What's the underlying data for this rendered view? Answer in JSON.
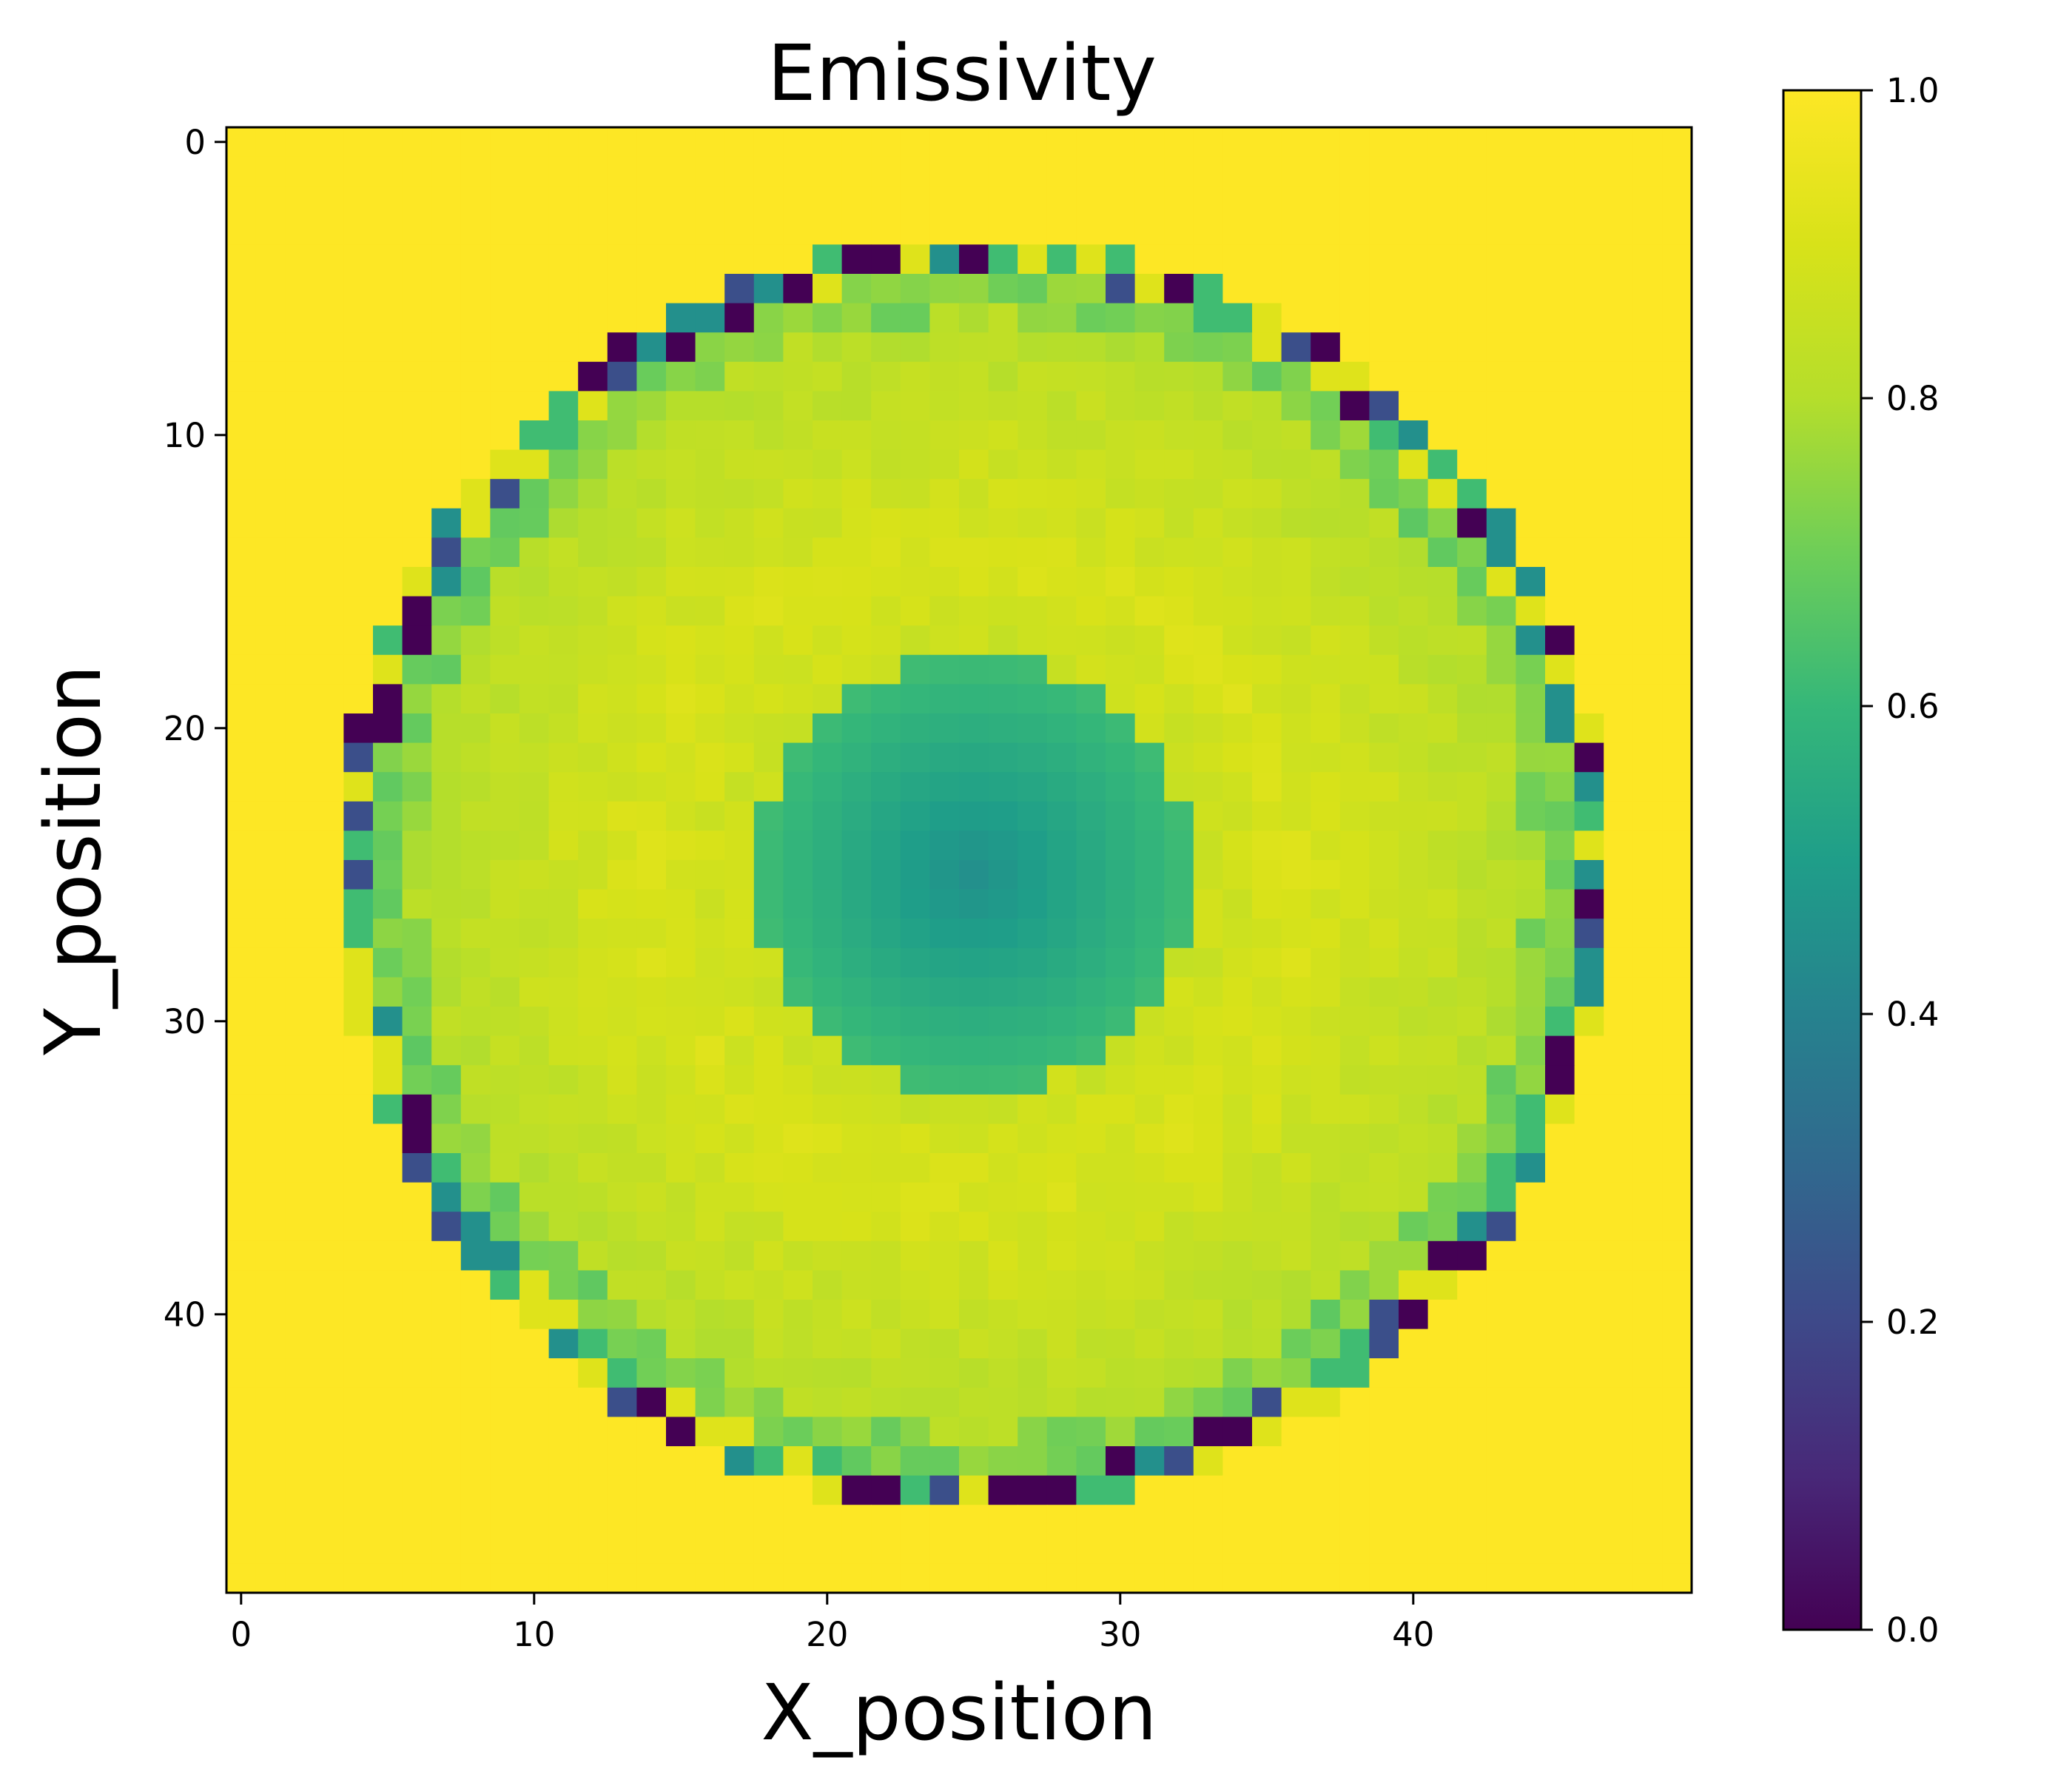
{
  "chart_data": {
    "type": "heatmap",
    "title": "Emissivity",
    "xlabel": "X_position",
    "ylabel": "Y_position",
    "grid_size": 50,
    "xlim": [
      -0.5,
      49.5
    ],
    "ylim": [
      49.5,
      -0.5
    ],
    "x_ticks": [
      0,
      10,
      20,
      30,
      40
    ],
    "y_ticks": [
      0,
      10,
      20,
      30,
      40
    ],
    "colormap": "viridis",
    "colorbar": {
      "min": 0.0,
      "max": 1.0,
      "ticks": [
        "0.0",
        "0.2",
        "0.4",
        "0.6",
        "0.8",
        "1.0"
      ],
      "placement": "right"
    },
    "background_value": 1.0,
    "field": {
      "center": [
        25,
        25
      ],
      "disk_radius": 21.7,
      "inner_spot_radius": 7.4,
      "inner_spot_center_value": 0.45,
      "inner_spot_edge_value": 0.62,
      "bright_ring_value": 0.9,
      "outer_ring_value": 0.81
    }
  }
}
